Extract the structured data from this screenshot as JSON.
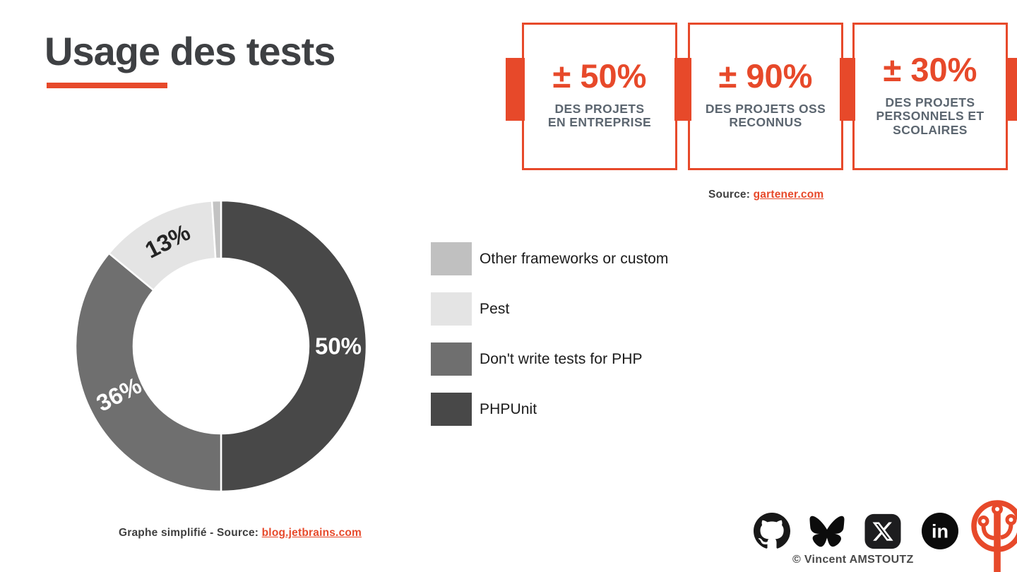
{
  "colors": {
    "accent": "#e7492a",
    "title_text": "#3e4043",
    "stat_caption_text": "#5c6670",
    "pie_dark": "#484848",
    "pie_mid": "#6f6f6f",
    "pie_light": "#e4e4e4",
    "pie_sliver": "#c3c3c3"
  },
  "title": {
    "text": "Usage des tests"
  },
  "stats": {
    "boxes": [
      {
        "value": "± 50%",
        "caption": "DES PROJETS\nEN ENTREPRISE"
      },
      {
        "value": "± 90%",
        "caption": "DES PROJETS OSS\nRECONNUS"
      },
      {
        "value": "± 30%",
        "caption": "DES PROJETS\nPERSONNELS ET\nSCOLAIRES"
      }
    ],
    "source_label": "Source: ",
    "source_link": "gartener.com"
  },
  "chart_data": {
    "type": "pie",
    "subtype": "donut",
    "title": "",
    "start_angle_deg": 0,
    "direction": "clockwise",
    "inner_radius_ratio": 0.6,
    "legend_position": "right",
    "series": [
      {
        "name": "PHPUnit",
        "value": 50,
        "color": "#484848",
        "label": "50%",
        "label_color": "#ffffff",
        "label_rotation": 0,
        "label_radius": 166
      },
      {
        "name": "Don't write tests for PHP",
        "value": 36,
        "color": "#6f6f6f",
        "label": "36%",
        "label_color": "#ffffff",
        "label_rotation": -27,
        "label_radius": 160
      },
      {
        "name": "Pest",
        "value": 13,
        "color": "#e4e4e4",
        "label": "13%",
        "label_color": "#252525",
        "label_rotation": -27,
        "label_radius": 167
      },
      {
        "name": "Other frameworks or custom",
        "value": 1,
        "color": "#c3c3c3",
        "label": "",
        "label_color": "",
        "label_rotation": 0,
        "label_radius": 0
      }
    ]
  },
  "legend": {
    "items": [
      {
        "label": "Other frameworks or custom",
        "color": "#c0c0c0"
      },
      {
        "label": "Pest",
        "color": "#e4e4e4"
      },
      {
        "label": "Don't write tests for PHP",
        "color": "#6f6f6f"
      },
      {
        "label": "PHPUnit",
        "color": "#484848"
      }
    ]
  },
  "footer": {
    "caption_label": "Graphe simplifié - Source: ",
    "caption_link": "blog.jetbrains.com",
    "copyright": "© Vincent AMSTOUTZ",
    "icons": [
      "github-icon",
      "bluesky-icon",
      "x-icon",
      "linkedin-icon",
      "brand-tree-icon"
    ]
  }
}
